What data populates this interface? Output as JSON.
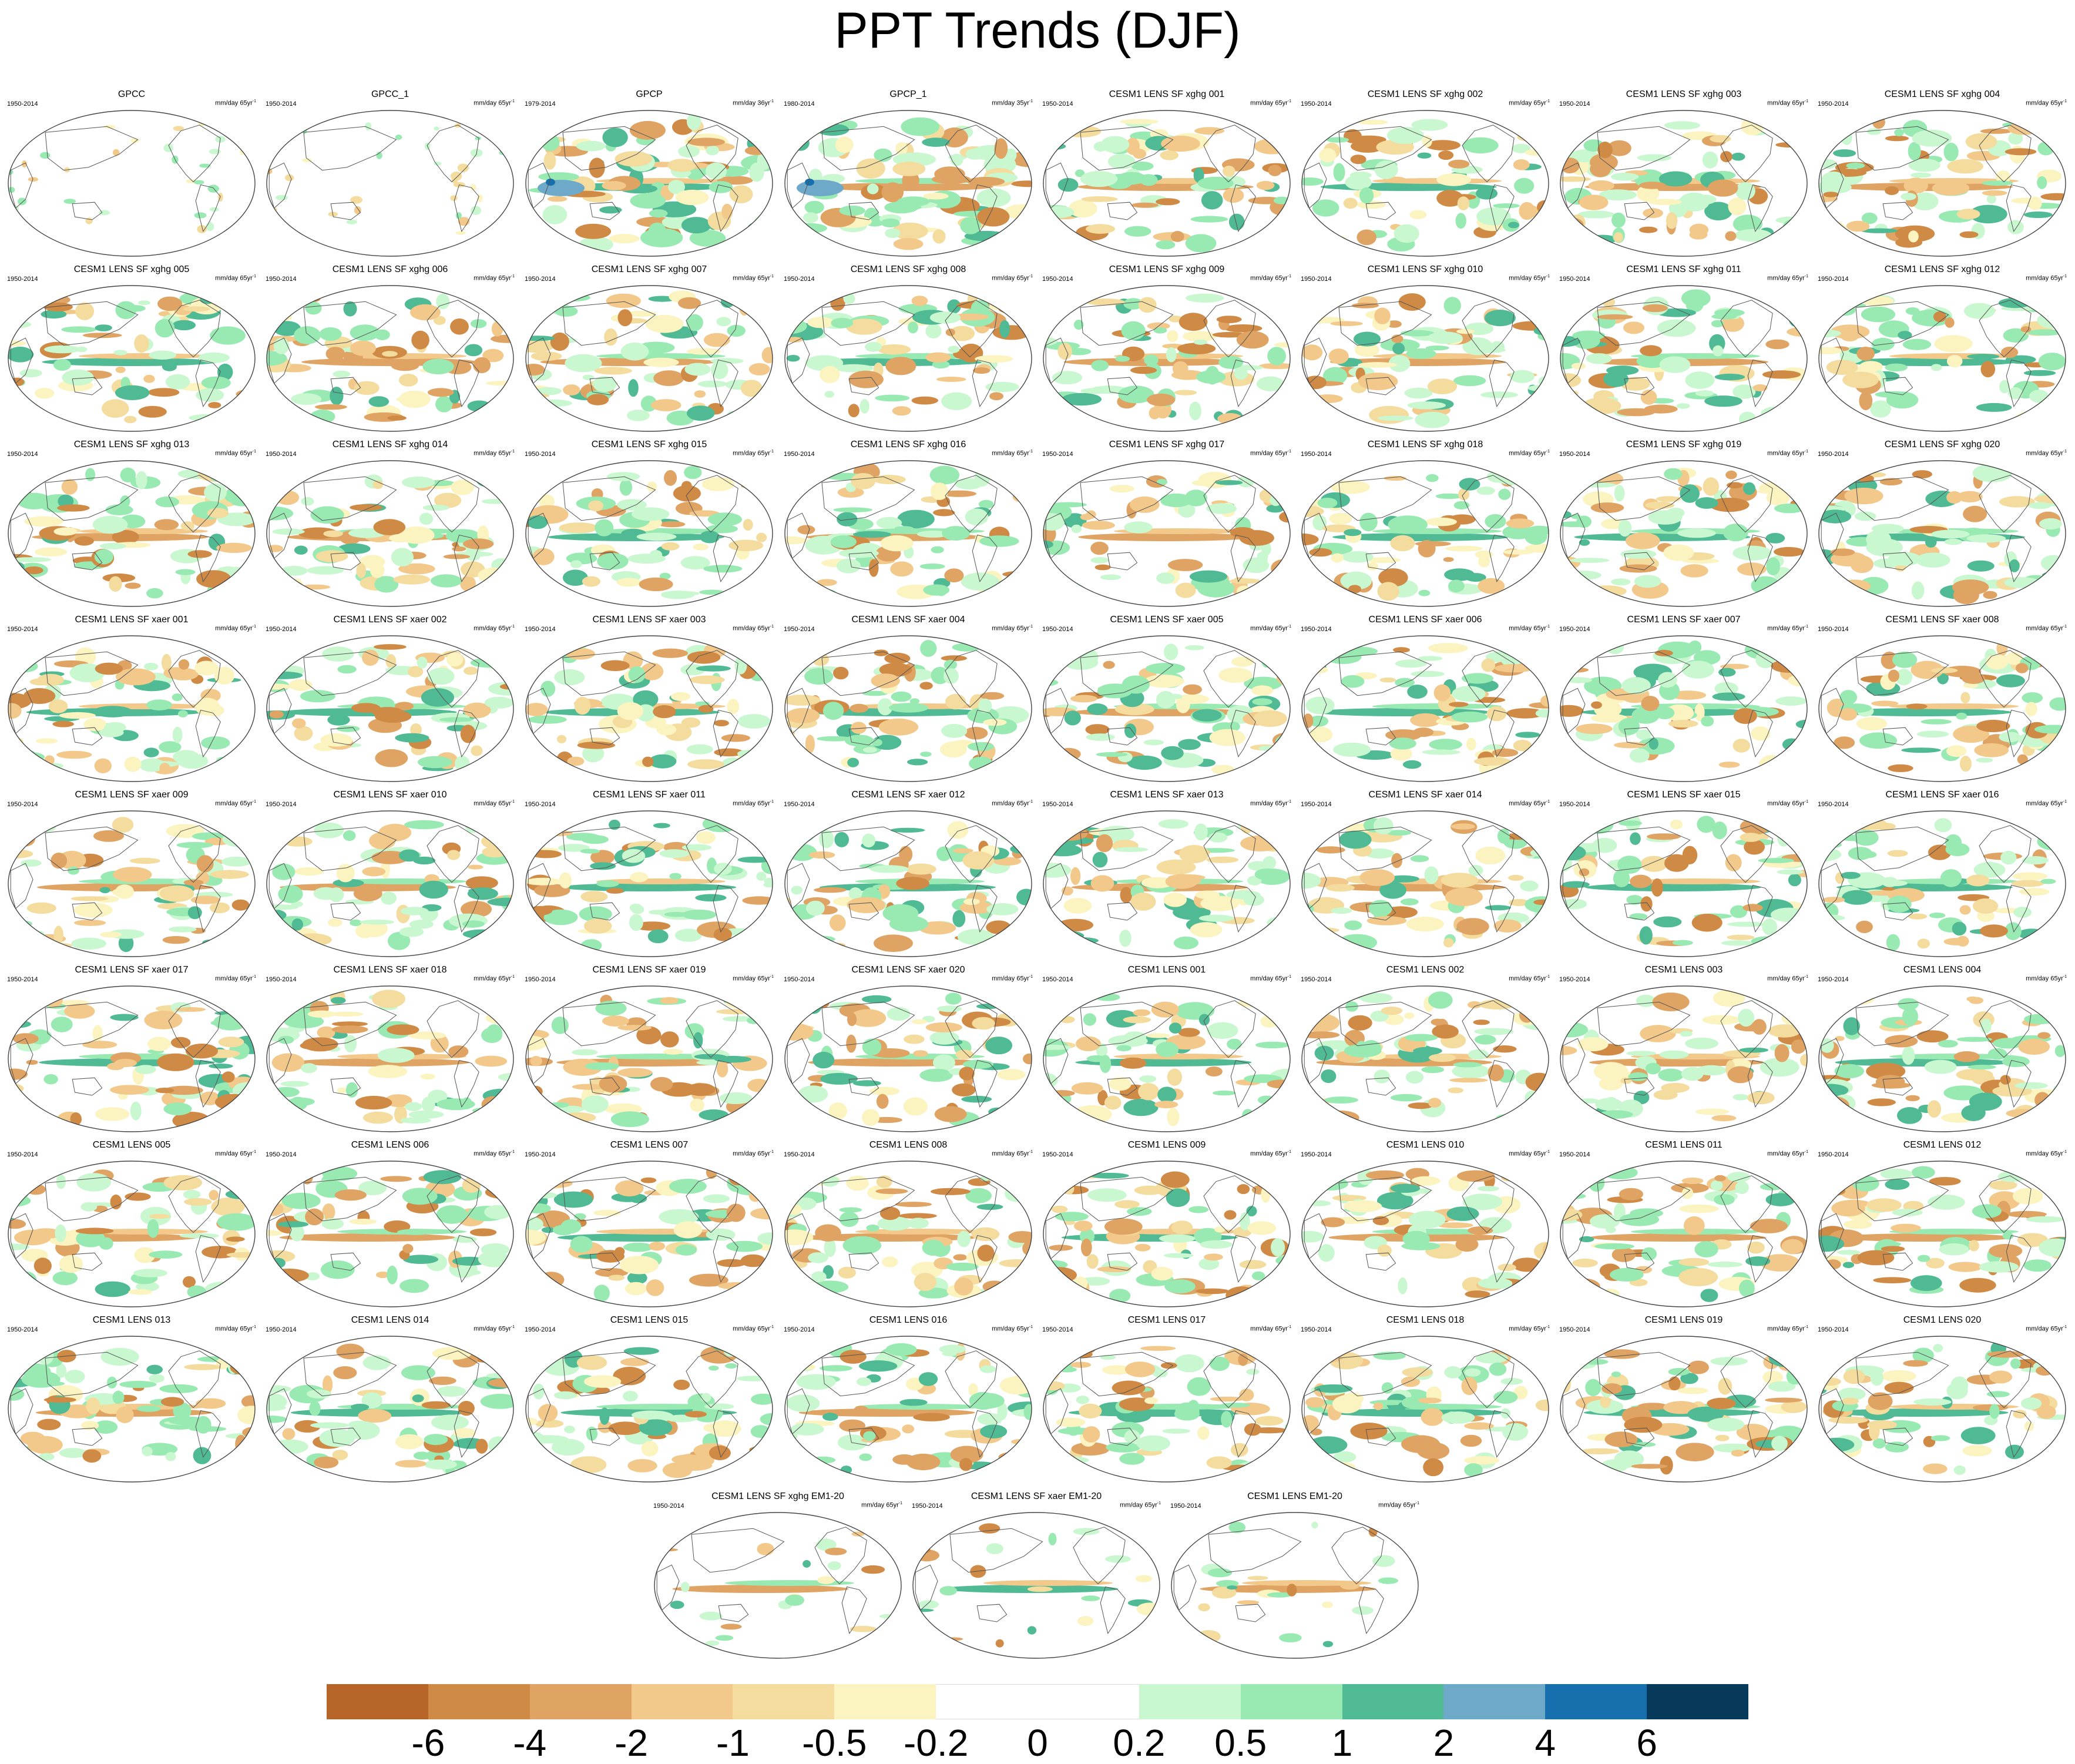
{
  "title": "PPT Trends (DJF)",
  "units": "mm/day",
  "panels": [
    {
      "title": "GPCC",
      "period": "1950-2014",
      "trend_span": "65yr",
      "field": "obs_land"
    },
    {
      "title": "GPCC_1",
      "period": "1950-2014",
      "trend_span": "65yr",
      "field": "obs_land"
    },
    {
      "title": "GPCP",
      "period": "1979-2014",
      "trend_span": "36yr",
      "field": "obs_full"
    },
    {
      "title": "GPCP_1",
      "period": "1980-2014",
      "trend_span": "35yr",
      "field": "obs_full"
    },
    {
      "title": "CESM1 LENS SF xghg 001",
      "period": "1950-2014",
      "trend_span": "65yr",
      "field": "member"
    },
    {
      "title": "CESM1 LENS SF xghg 002",
      "period": "1950-2014",
      "trend_span": "65yr",
      "field": "member"
    },
    {
      "title": "CESM1 LENS SF xghg 003",
      "period": "1950-2014",
      "trend_span": "65yr",
      "field": "member"
    },
    {
      "title": "CESM1 LENS SF xghg 004",
      "period": "1950-2014",
      "trend_span": "65yr",
      "field": "member"
    },
    {
      "title": "CESM1 LENS SF xghg 005",
      "period": "1950-2014",
      "trend_span": "65yr",
      "field": "member"
    },
    {
      "title": "CESM1 LENS SF xghg 006",
      "period": "1950-2014",
      "trend_span": "65yr",
      "field": "member"
    },
    {
      "title": "CESM1 LENS SF xghg 007",
      "period": "1950-2014",
      "trend_span": "65yr",
      "field": "member"
    },
    {
      "title": "CESM1 LENS SF xghg 008",
      "period": "1950-2014",
      "trend_span": "65yr",
      "field": "member"
    },
    {
      "title": "CESM1 LENS SF xghg 009",
      "period": "1950-2014",
      "trend_span": "65yr",
      "field": "member"
    },
    {
      "title": "CESM1 LENS SF xghg 010",
      "period": "1950-2014",
      "trend_span": "65yr",
      "field": "member"
    },
    {
      "title": "CESM1 LENS SF xghg 011",
      "period": "1950-2014",
      "trend_span": "65yr",
      "field": "member"
    },
    {
      "title": "CESM1 LENS SF xghg 012",
      "period": "1950-2014",
      "trend_span": "65yr",
      "field": "member"
    },
    {
      "title": "CESM1 LENS SF xghg 013",
      "period": "1950-2014",
      "trend_span": "65yr",
      "field": "member"
    },
    {
      "title": "CESM1 LENS SF xghg 014",
      "period": "1950-2014",
      "trend_span": "65yr",
      "field": "member"
    },
    {
      "title": "CESM1 LENS SF xghg 015",
      "period": "1950-2014",
      "trend_span": "65yr",
      "field": "member"
    },
    {
      "title": "CESM1 LENS SF xghg 016",
      "period": "1950-2014",
      "trend_span": "65yr",
      "field": "member"
    },
    {
      "title": "CESM1 LENS SF xghg 017",
      "period": "1950-2014",
      "trend_span": "65yr",
      "field": "member"
    },
    {
      "title": "CESM1 LENS SF xghg 018",
      "period": "1950-2014",
      "trend_span": "65yr",
      "field": "member"
    },
    {
      "title": "CESM1 LENS SF xghg 019",
      "period": "1950-2014",
      "trend_span": "65yr",
      "field": "member"
    },
    {
      "title": "CESM1 LENS SF xghg 020",
      "period": "1950-2014",
      "trend_span": "65yr",
      "field": "member"
    },
    {
      "title": "CESM1 LENS SF xaer 001",
      "period": "1950-2014",
      "trend_span": "65yr",
      "field": "member"
    },
    {
      "title": "CESM1 LENS SF xaer 002",
      "period": "1950-2014",
      "trend_span": "65yr",
      "field": "member"
    },
    {
      "title": "CESM1 LENS SF xaer 003",
      "period": "1950-2014",
      "trend_span": "65yr",
      "field": "member"
    },
    {
      "title": "CESM1 LENS SF xaer 004",
      "period": "1950-2014",
      "trend_span": "65yr",
      "field": "member"
    },
    {
      "title": "CESM1 LENS SF xaer 005",
      "period": "1950-2014",
      "trend_span": "65yr",
      "field": "member"
    },
    {
      "title": "CESM1 LENS SF xaer 006",
      "period": "1950-2014",
      "trend_span": "65yr",
      "field": "member"
    },
    {
      "title": "CESM1 LENS SF xaer 007",
      "period": "1950-2014",
      "trend_span": "65yr",
      "field": "member"
    },
    {
      "title": "CESM1 LENS SF xaer 008",
      "period": "1950-2014",
      "trend_span": "65yr",
      "field": "member"
    },
    {
      "title": "CESM1 LENS SF xaer 009",
      "period": "1950-2014",
      "trend_span": "65yr",
      "field": "member"
    },
    {
      "title": "CESM1 LENS SF xaer 010",
      "period": "1950-2014",
      "trend_span": "65yr",
      "field": "member"
    },
    {
      "title": "CESM1 LENS SF xaer 011",
      "period": "1950-2014",
      "trend_span": "65yr",
      "field": "member"
    },
    {
      "title": "CESM1 LENS SF xaer 012",
      "period": "1950-2014",
      "trend_span": "65yr",
      "field": "member"
    },
    {
      "title": "CESM1 LENS SF xaer 013",
      "period": "1950-2014",
      "trend_span": "65yr",
      "field": "member"
    },
    {
      "title": "CESM1 LENS SF xaer 014",
      "period": "1950-2014",
      "trend_span": "65yr",
      "field": "member"
    },
    {
      "title": "CESM1 LENS SF xaer 015",
      "period": "1950-2014",
      "trend_span": "65yr",
      "field": "member"
    },
    {
      "title": "CESM1 LENS SF xaer 016",
      "period": "1950-2014",
      "trend_span": "65yr",
      "field": "member"
    },
    {
      "title": "CESM1 LENS SF xaer 017",
      "period": "1950-2014",
      "trend_span": "65yr",
      "field": "member"
    },
    {
      "title": "CESM1 LENS SF xaer 018",
      "period": "1950-2014",
      "trend_span": "65yr",
      "field": "member"
    },
    {
      "title": "CESM1 LENS SF xaer 019",
      "period": "1950-2014",
      "trend_span": "65yr",
      "field": "member"
    },
    {
      "title": "CESM1 LENS SF xaer 020",
      "period": "1950-2014",
      "trend_span": "65yr",
      "field": "member"
    },
    {
      "title": "CESM1 LENS 001",
      "period": "1950-2014",
      "trend_span": "65yr",
      "field": "member"
    },
    {
      "title": "CESM1 LENS 002",
      "period": "1950-2014",
      "trend_span": "65yr",
      "field": "member"
    },
    {
      "title": "CESM1 LENS 003",
      "period": "1950-2014",
      "trend_span": "65yr",
      "field": "member"
    },
    {
      "title": "CESM1 LENS 004",
      "period": "1950-2014",
      "trend_span": "65yr",
      "field": "member"
    },
    {
      "title": "CESM1 LENS 005",
      "period": "1950-2014",
      "trend_span": "65yr",
      "field": "member"
    },
    {
      "title": "CESM1 LENS 006",
      "period": "1950-2014",
      "trend_span": "65yr",
      "field": "member"
    },
    {
      "title": "CESM1 LENS 007",
      "period": "1950-2014",
      "trend_span": "65yr",
      "field": "member"
    },
    {
      "title": "CESM1 LENS 008",
      "period": "1950-2014",
      "trend_span": "65yr",
      "field": "member"
    },
    {
      "title": "CESM1 LENS 009",
      "period": "1950-2014",
      "trend_span": "65yr",
      "field": "member"
    },
    {
      "title": "CESM1 LENS 010",
      "period": "1950-2014",
      "trend_span": "65yr",
      "field": "member"
    },
    {
      "title": "CESM1 LENS 011",
      "period": "1950-2014",
      "trend_span": "65yr",
      "field": "member"
    },
    {
      "title": "CESM1 LENS 012",
      "period": "1950-2014",
      "trend_span": "65yr",
      "field": "member"
    },
    {
      "title": "CESM1 LENS 013",
      "period": "1950-2014",
      "trend_span": "65yr",
      "field": "member"
    },
    {
      "title": "CESM1 LENS 014",
      "period": "1950-2014",
      "trend_span": "65yr",
      "field": "member"
    },
    {
      "title": "CESM1 LENS 015",
      "period": "1950-2014",
      "trend_span": "65yr",
      "field": "member"
    },
    {
      "title": "CESM1 LENS 016",
      "period": "1950-2014",
      "trend_span": "65yr",
      "field": "member"
    },
    {
      "title": "CESM1 LENS 017",
      "period": "1950-2014",
      "trend_span": "65yr",
      "field": "member"
    },
    {
      "title": "CESM1 LENS 018",
      "period": "1950-2014",
      "trend_span": "65yr",
      "field": "member"
    },
    {
      "title": "CESM1 LENS 019",
      "period": "1950-2014",
      "trend_span": "65yr",
      "field": "member"
    },
    {
      "title": "CESM1 LENS 020",
      "period": "1950-2014",
      "trend_span": "65yr",
      "field": "member"
    },
    {
      "title": "CESM1 LENS SF xghg EM1-20",
      "period": "1950-2014",
      "trend_span": "65yr",
      "field": "ensemble_mean"
    },
    {
      "title": "CESM1 LENS SF xaer EM1-20",
      "period": "1950-2014",
      "trend_span": "65yr",
      "field": "ensemble_mean"
    },
    {
      "title": "CESM1 LENS EM1-20",
      "period": "1950-2014",
      "trend_span": "65yr",
      "field": "ensemble_mean"
    }
  ],
  "colorbar": {
    "labels": [
      "-6",
      "-4",
      "-2",
      "-1",
      "-0.5",
      "-0.2",
      "0",
      "0.2",
      "0.5",
      "1",
      "2",
      "4",
      "6"
    ],
    "colors": [
      "#b8652a",
      "#cf8a45",
      "#dfa463",
      "#f2c98a",
      "#f3dc9e",
      "#fcf4c0",
      "#ffffff",
      "#ffffff",
      "#c9f7cf",
      "#98eab2",
      "#4fba93",
      "#6ea9c9",
      "#1770ad",
      "#06395a"
    ]
  }
}
